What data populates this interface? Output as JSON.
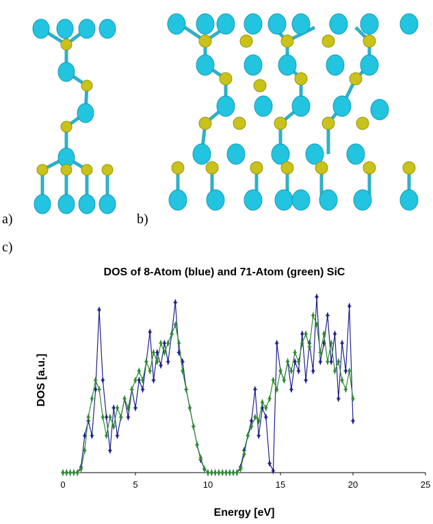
{
  "panel_labels": [
    "a)",
    "b)",
    "c)"
  ],
  "chart_data": {
    "type": "line",
    "title": "DOS of 8-Atom (blue) and 71-Atom (green) SiC",
    "x_label": "Energy [eV]",
    "y_label": "DOS [a.u.]",
    "xlim": [
      0,
      25
    ],
    "xticks": [
      0,
      5,
      10,
      15,
      20,
      25
    ],
    "ylim": [
      0,
      1
    ],
    "x": [
      0,
      0.25,
      0.5,
      0.75,
      1,
      1.25,
      1.5,
      1.75,
      2,
      2.25,
      2.5,
      2.75,
      3,
      3.25,
      3.5,
      3.75,
      4,
      4.25,
      4.5,
      4.75,
      5,
      5.25,
      5.5,
      5.75,
      6,
      6.25,
      6.5,
      6.75,
      7,
      7.25,
      7.5,
      7.75,
      8,
      8.25,
      8.5,
      8.75,
      9,
      9.25,
      9.5,
      9.75,
      10,
      10.25,
      10.5,
      10.75,
      11,
      11.25,
      11.5,
      11.75,
      12,
      12.25,
      12.5,
      12.75,
      13,
      13.25,
      13.5,
      13.75,
      14,
      14.25,
      14.5,
      14.75,
      15,
      15.25,
      15.5,
      15.75,
      16,
      16.25,
      16.5,
      16.75,
      17,
      17.25,
      17.5,
      17.75,
      18,
      18.25,
      18.5,
      18.75,
      19,
      19.25,
      19.5,
      19.75,
      20
    ],
    "series": [
      {
        "color": "#1f1f8f",
        "values": [
          0,
          0,
          0,
          0,
          0,
          0.03,
          0.2,
          0.28,
          0.2,
          0.45,
          0.88,
          0.5,
          0.3,
          0.12,
          0.35,
          0.2,
          0.3,
          0.4,
          0.3,
          0.45,
          0.35,
          0.5,
          0.45,
          0.6,
          0.76,
          0.5,
          0.65,
          0.58,
          0.7,
          0.6,
          0.75,
          0.92,
          0.65,
          0.6,
          0.45,
          0.35,
          0.25,
          0.15,
          0.07,
          0.02,
          0,
          0,
          0,
          0,
          0,
          0,
          0,
          0,
          0,
          0.03,
          0.12,
          0.2,
          0.28,
          0.45,
          0.2,
          0.35,
          0.3,
          0.05,
          0.01,
          0.7,
          0.55,
          0.5,
          0.6,
          0.45,
          0.6,
          0.55,
          0.75,
          0.5,
          0.7,
          0.55,
          0.95,
          0.6,
          0.7,
          0.85,
          0.6,
          0.75,
          0.4,
          0.7,
          0.55,
          0.9,
          0.28
        ]
      },
      {
        "color": "#2e8b2e",
        "values": [
          0,
          0,
          0,
          0,
          0,
          0.02,
          0.12,
          0.3,
          0.4,
          0.5,
          0.45,
          0.3,
          0.2,
          0.3,
          0.25,
          0.35,
          0.3,
          0.4,
          0.35,
          0.45,
          0.5,
          0.55,
          0.5,
          0.6,
          0.55,
          0.65,
          0.6,
          0.7,
          0.65,
          0.7,
          0.75,
          0.8,
          0.7,
          0.55,
          0.45,
          0.35,
          0.25,
          0.15,
          0.08,
          0.02,
          0,
          0,
          0,
          0,
          0,
          0,
          0,
          0,
          0,
          0.02,
          0.1,
          0.2,
          0.25,
          0.3,
          0.28,
          0.38,
          0.35,
          0.4,
          0.5,
          0.45,
          0.55,
          0.5,
          0.6,
          0.55,
          0.65,
          0.6,
          0.7,
          0.75,
          0.68,
          0.85,
          0.8,
          0.65,
          0.75,
          0.6,
          0.7,
          0.55,
          0.6,
          0.5,
          0.45,
          0.55,
          0.4
        ]
      }
    ]
  }
}
